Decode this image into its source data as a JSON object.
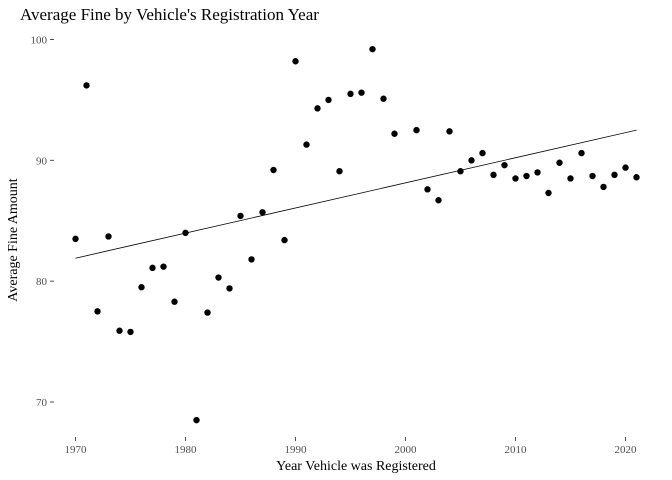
{
  "chart_data": {
    "type": "scatter",
    "title": "Average Fine by Vehicle's Registration Year",
    "xlabel": "Year Vehicle was Registered",
    "ylabel": "Average Fine Amount",
    "xlim": [
      1970,
      2021
    ],
    "ylim": [
      66.5,
      101
    ],
    "x_ticks": [
      1970,
      1980,
      1990,
      2000,
      2010,
      2020
    ],
    "y_ticks": [
      70,
      80,
      90,
      100
    ],
    "grid": false,
    "legend": "none",
    "point_color": "#000000",
    "series": [
      {
        "x": [
          1970,
          1971,
          1972,
          1973,
          1974,
          1975,
          1976,
          1977,
          1978,
          1979,
          1980,
          1981,
          1982,
          1983,
          1984,
          1985,
          1986,
          1987,
          1988,
          1989,
          1990,
          1991,
          1992,
          1993,
          1994,
          1995,
          1996,
          1997,
          1998,
          1999,
          2001,
          2002,
          2003,
          2004,
          2005,
          2006,
          2007,
          2008,
          2009,
          2010,
          2011,
          2012,
          2013,
          2014,
          2015,
          2016,
          2017,
          2018,
          2019,
          2020,
          2021
        ],
        "y": [
          83.5,
          96.2,
          77.5,
          83.7,
          75.9,
          75.8,
          79.5,
          81.1,
          81.2,
          78.3,
          84.0,
          68.5,
          77.4,
          80.3,
          79.4,
          85.4,
          81.8,
          85.7,
          89.2,
          83.4,
          98.2,
          91.3,
          94.3,
          95.0,
          89.1,
          95.5,
          95.6,
          99.2,
          95.1,
          92.2,
          92.5,
          87.6,
          86.7,
          92.4,
          89.1,
          90.0,
          90.6,
          88.8,
          89.6,
          88.5,
          88.7,
          89.0,
          87.3,
          89.8,
          88.5,
          90.6,
          88.7,
          87.8,
          88.8,
          89.4,
          88.6
        ]
      }
    ],
    "trend_line": {
      "x": [
        1970,
        2021
      ],
      "y": [
        81.9,
        92.5
      ]
    }
  }
}
